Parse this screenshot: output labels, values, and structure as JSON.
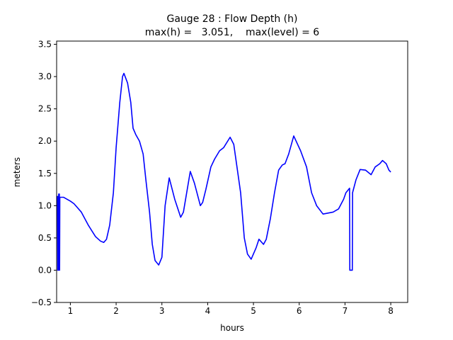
{
  "chart_data": {
    "type": "line",
    "title": "Gauge 28 : Flow Depth (h)",
    "subtitle": "max(h) =   3.051,    max(level) = 6",
    "x_label": "hours",
    "y_label": "meters",
    "xlim": [
      0.7,
      8.37
    ],
    "ylim": [
      -0.5,
      3.55
    ],
    "xticks": [
      1,
      2,
      3,
      4,
      5,
      6,
      7,
      8
    ],
    "yticks": [
      {
        "value": -0.5,
        "label": "−0.5"
      },
      {
        "value": 0,
        "label": "0.0"
      },
      0.5,
      {
        "value": 1,
        "label": "1.0"
      },
      1.5,
      {
        "value": 2,
        "label": "2.0"
      },
      2.5,
      {
        "value": 3,
        "label": "3.0"
      },
      3.5
    ],
    "series": [
      {
        "color": "#0000ff",
        "x": [
          0.72,
          0.725,
          0.74,
          0.745,
          0.76,
          0.765,
          0.77,
          0.79,
          0.85,
          1.0,
          1.08,
          1.24,
          1.39,
          1.55,
          1.66,
          1.73,
          1.79,
          1.86,
          1.94,
          2.0,
          2.08,
          2.14,
          2.17,
          2.25,
          2.32,
          2.37,
          2.43,
          2.51,
          2.59,
          2.65,
          2.73,
          2.79,
          2.85,
          2.93,
          3.0,
          3.07,
          3.16,
          3.28,
          3.41,
          3.47,
          3.62,
          3.71,
          3.84,
          3.89,
          3.96,
          4.07,
          4.15,
          4.26,
          4.35,
          4.49,
          4.57,
          4.64,
          4.72,
          4.8,
          4.87,
          4.95,
          5.06,
          5.12,
          5.22,
          5.28,
          5.37,
          5.46,
          5.55,
          5.63,
          5.69,
          5.77,
          5.88,
          6.03,
          6.16,
          6.27,
          6.38,
          6.52,
          6.74,
          6.86,
          6.97,
          7.02,
          7.1,
          7.105,
          7.16,
          7.165,
          7.24,
          7.33,
          7.45,
          7.57,
          7.66,
          7.76,
          7.82,
          7.9,
          7.96,
          8.0
        ],
        "values": [
          1.15,
          0,
          0,
          1.18,
          1.18,
          0,
          1.13,
          1.13,
          1.13,
          1.07,
          1.03,
          0.9,
          0.7,
          0.52,
          0.45,
          0.43,
          0.48,
          0.7,
          1.2,
          1.9,
          2.6,
          3.0,
          3.05,
          2.9,
          2.6,
          2.2,
          2.1,
          2.0,
          1.8,
          1.4,
          0.9,
          0.4,
          0.15,
          0.08,
          0.2,
          1.0,
          1.43,
          1.1,
          0.82,
          0.9,
          1.53,
          1.35,
          1.0,
          1.05,
          1.25,
          1.6,
          1.72,
          1.85,
          1.9,
          2.06,
          1.95,
          1.6,
          1.2,
          0.5,
          0.25,
          0.17,
          0.35,
          0.48,
          0.4,
          0.48,
          0.8,
          1.2,
          1.55,
          1.63,
          1.65,
          1.8,
          2.08,
          1.85,
          1.6,
          1.2,
          1.0,
          0.87,
          0.9,
          0.95,
          1.1,
          1.2,
          1.27,
          0,
          0,
          1.2,
          1.4,
          1.56,
          1.55,
          1.48,
          1.6,
          1.65,
          1.7,
          1.65,
          1.55,
          1.52
        ]
      }
    ]
  }
}
